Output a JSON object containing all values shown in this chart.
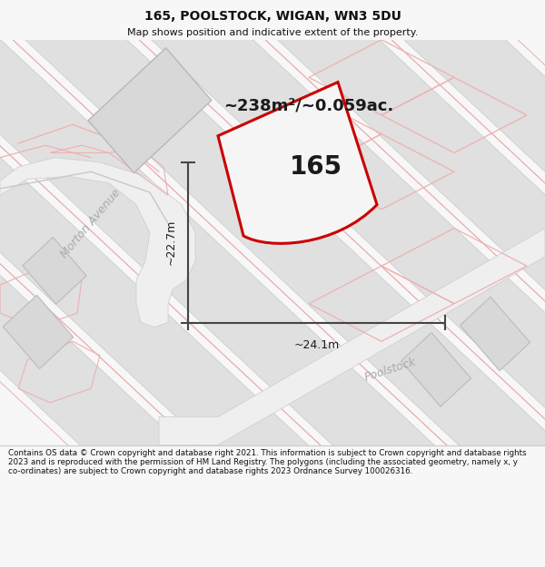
{
  "title_line1": "165, POOLSTOCK, WIGAN, WN3 5DU",
  "title_line2": "Map shows position and indicative extent of the property.",
  "area_label": "~238m²/~0.059ac.",
  "number_label": "165",
  "dim_horizontal": "~24.1m",
  "dim_vertical": "~22.7m",
  "road_label1": "Morton Avenue",
  "road_label2": "Poolstock",
  "footer_text": "Contains OS data © Crown copyright and database right 2021. This information is subject to Crown copyright and database rights 2023 and is reproduced with the permission of HM Land Registry. The polygons (including the associated geometry, namely x, y co-ordinates) are subject to Crown copyright and database rights 2023 Ordnance Survey 100026316.",
  "bg_color": "#f7f7f7",
  "map_bg_color": "#ffffff",
  "plot_color": "#cc0000",
  "building_fill_color": "#e0e0e0",
  "neighbor_line_color": "#f0a0a0",
  "road_color": "#e8e8e8",
  "dim_line_color": "#444444"
}
